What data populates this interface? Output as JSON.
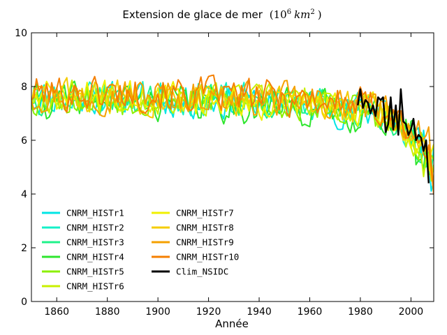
{
  "chart_data": {
    "type": "line",
    "title": "Extension de glace de mer",
    "title_units": "(10",
    "title_units_exp": "6",
    "title_units_km": "km",
    "title_units_km_exp": "2",
    "title_units_close": ")",
    "xlabel": "Année",
    "ylabel": "",
    "xlim": [
      1850,
      2009
    ],
    "ylim": [
      0,
      10
    ],
    "xticks": [
      1860,
      1880,
      1900,
      1920,
      1940,
      1960,
      1980,
      2000
    ],
    "yticks": [
      0,
      2,
      4,
      6,
      8,
      10
    ],
    "legend_position": "lower-left",
    "series": [
      {
        "name": "CNRM_HISTr1",
        "color": "#00e5e5",
        "start": 1850,
        "end": 2009,
        "seed": 11,
        "amp": 0.55,
        "bias": -0.15,
        "late_drop": 2.6
      },
      {
        "name": "CNRM_HISTr2",
        "color": "#14f0c8",
        "start": 1850,
        "end": 2009,
        "seed": 23,
        "amp": 0.55,
        "bias": 0.05,
        "late_drop": 2.4
      },
      {
        "name": "CNRM_HISTr3",
        "color": "#1ff28a",
        "start": 1850,
        "end": 2009,
        "seed": 37,
        "amp": 0.5,
        "bias": -0.05,
        "late_drop": 2.3
      },
      {
        "name": "CNRM_HISTr4",
        "color": "#2ee62e",
        "start": 1850,
        "end": 2009,
        "seed": 41,
        "amp": 0.6,
        "bias": -0.3,
        "late_drop": 2.5
      },
      {
        "name": "CNRM_HISTr5",
        "color": "#8cf000",
        "start": 1850,
        "end": 2009,
        "seed": 53,
        "amp": 0.55,
        "bias": -0.1,
        "late_drop": 2.2
      },
      {
        "name": "CNRM_HISTr6",
        "color": "#c8f000",
        "start": 1850,
        "end": 2009,
        "seed": 67,
        "amp": 0.55,
        "bias": 0.1,
        "late_drop": 2.3
      },
      {
        "name": "CNRM_HISTr7",
        "color": "#f0f000",
        "start": 1850,
        "end": 2009,
        "seed": 71,
        "amp": 0.55,
        "bias": 0.0,
        "late_drop": 2.1
      },
      {
        "name": "CNRM_HISTr8",
        "color": "#f5cc00",
        "start": 1850,
        "end": 2009,
        "seed": 83,
        "amp": 0.55,
        "bias": 0.1,
        "late_drop": 2.2
      },
      {
        "name": "CNRM_HISTr9",
        "color": "#f5a000",
        "start": 1850,
        "end": 2009,
        "seed": 97,
        "amp": 0.55,
        "bias": 0.2,
        "late_drop": 2.4
      },
      {
        "name": "CNRM_HISTr10",
        "color": "#f57f00",
        "start": 1850,
        "end": 2009,
        "seed": 101,
        "amp": 0.6,
        "bias": 0.35,
        "late_drop": 2.5
      }
    ],
    "observed": {
      "name": "Clim_NSIDC",
      "color": "#000000",
      "x": [
        1979,
        1980,
        1981,
        1982,
        1983,
        1984,
        1985,
        1986,
        1987,
        1988,
        1989,
        1990,
        1991,
        1992,
        1993,
        1994,
        1995,
        1996,
        1997,
        1998,
        1999,
        2000,
        2001,
        2002,
        2003,
        2004,
        2005,
        2006,
        2007
      ],
      "y": [
        7.3,
        7.9,
        7.2,
        7.5,
        7.4,
        7.0,
        7.3,
        6.9,
        7.6,
        7.5,
        7.6,
        6.3,
        6.6,
        7.6,
        6.4,
        7.3,
        6.2,
        7.9,
        6.7,
        6.6,
        6.2,
        6.4,
        6.8,
        6.0,
        6.2,
        6.1,
        5.6,
        6.0,
        4.4
      ]
    }
  }
}
